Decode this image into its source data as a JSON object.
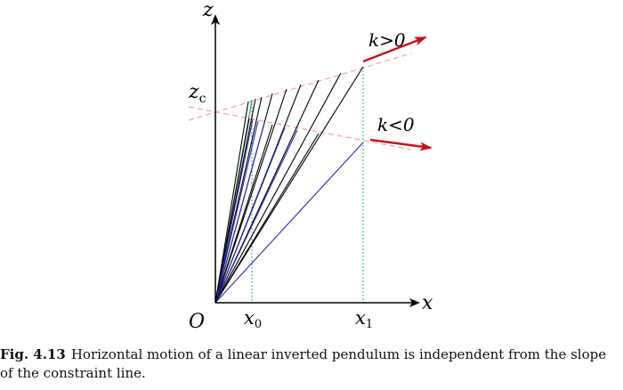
{
  "labels": {
    "z_axis": "z",
    "x_axis": "x",
    "origin": "O",
    "zc": "z",
    "zc_sub": "c",
    "x0": "x",
    "x0_sub": "0",
    "x1": "x",
    "x1_sub": "1",
    "k_pos": "k>0",
    "k_neg": "k<0"
  },
  "caption": {
    "label": "Fig. 4.13",
    "text": "Horizontal motion of a linear inverted pendulum is independent from the slope of the constraint line."
  },
  "colors": {
    "axis": "#000000",
    "constraint_line": "#f0a0a0",
    "arrow": "#c0161c",
    "blue_lines": "#2a2aa0",
    "dotted_guides": "#30b080"
  }
}
